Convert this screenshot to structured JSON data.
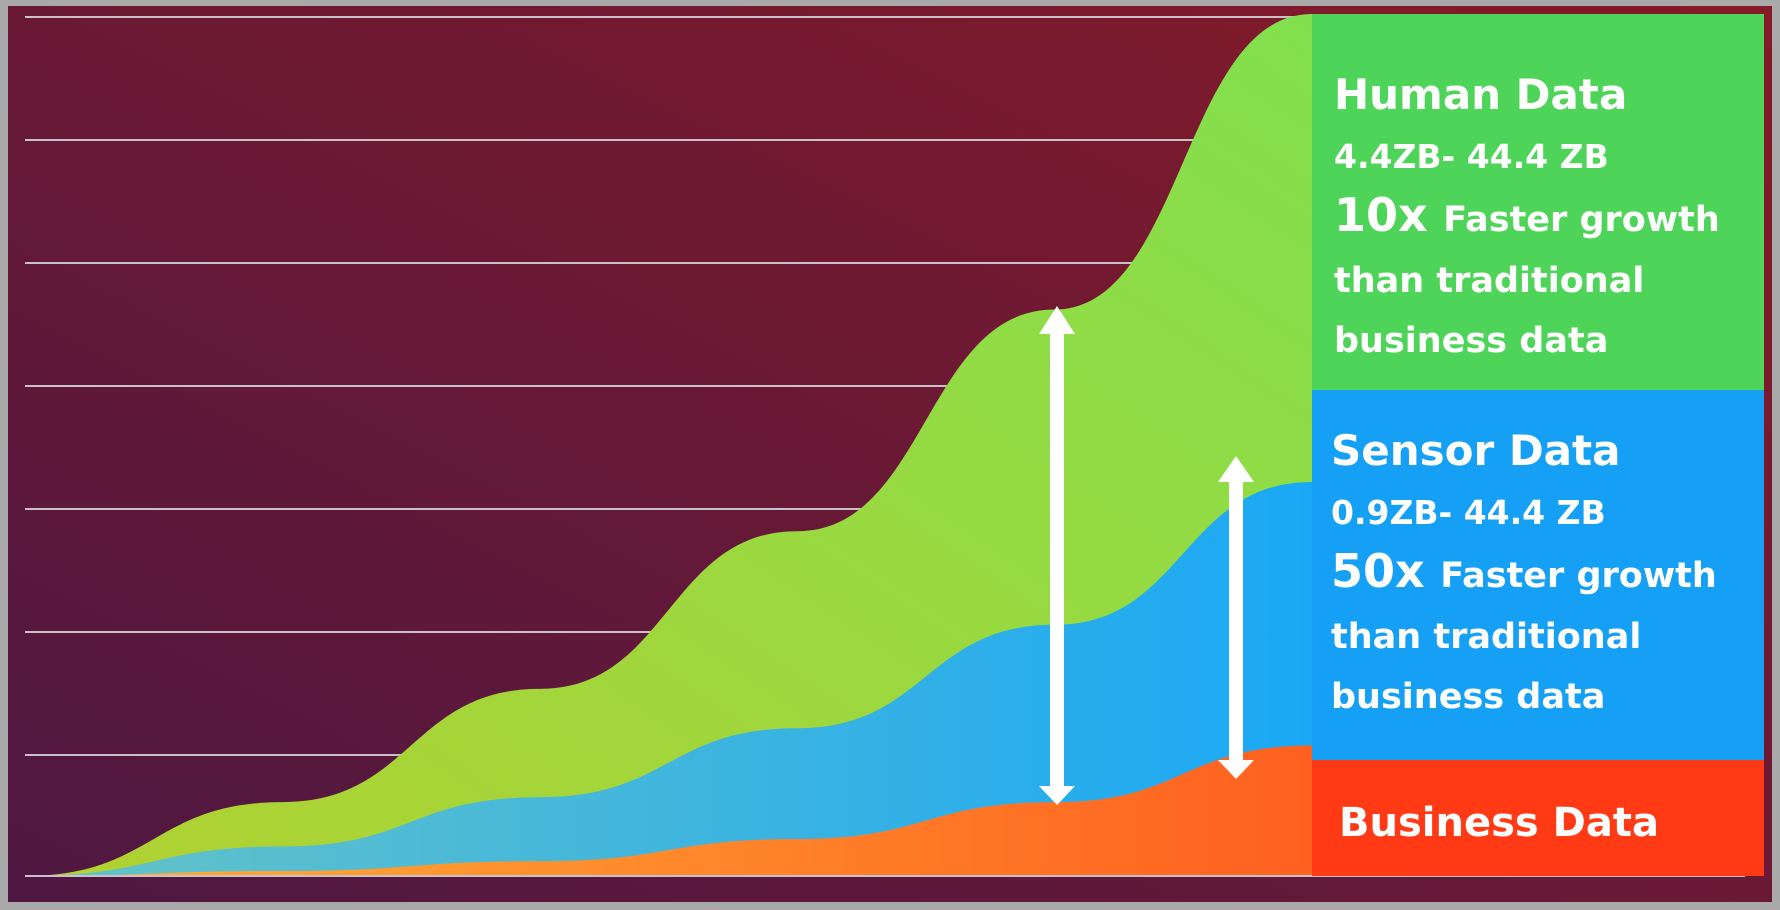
{
  "chart_data": {
    "type": "area",
    "stacked": true,
    "grid": true,
    "x_axis_labels": [],
    "y_axis_labels": [],
    "series_curve_points": {
      "business": [
        [
          0,
          0
        ],
        [
          0.2,
          0.02
        ],
        [
          0.4,
          0.06
        ],
        [
          0.6,
          0.15
        ],
        [
          0.8,
          0.3
        ],
        [
          1,
          0.53
        ]
      ],
      "sensor": [
        [
          0,
          0
        ],
        [
          0.2,
          0.12
        ],
        [
          0.4,
          0.32
        ],
        [
          0.6,
          0.6
        ],
        [
          0.8,
          1.02
        ],
        [
          1,
          1.6
        ]
      ],
      "human": [
        [
          0,
          0
        ],
        [
          0.2,
          0.3
        ],
        [
          0.4,
          0.76
        ],
        [
          0.6,
          1.4
        ],
        [
          0.8,
          2.3
        ],
        [
          1,
          3.5
        ]
      ]
    },
    "gridline_count": 7
  },
  "legend": {
    "human": {
      "title": "Human Data",
      "range": "4.4ZB- 44.4 ZB",
      "multiplier": "10x",
      "line1": "Faster growth",
      "line2": "than traditional",
      "line3": "business data",
      "color": "#4fd45a"
    },
    "sensor": {
      "title": "Sensor Data",
      "range": "0.9ZB- 44.4 ZB",
      "multiplier": "50x",
      "line1": "Faster growth",
      "line2": "than traditional",
      "line3": "business data",
      "color": "#16a0f5"
    },
    "business": {
      "title": "Business Data",
      "color": "#ff3a14"
    }
  },
  "colors": {
    "background_left": "#4e1842",
    "background_right": "#861a28",
    "human_fill_left": "#b1d131",
    "human_fill_right": "#82e04e",
    "sensor_fill_left": "#66c3c6",
    "sensor_fill_right": "#1aa8f5",
    "business_fill_left": "#ffb135",
    "business_fill_right": "#ff6020",
    "arrows": "#ffffff",
    "gridlines": "#c9c0c9"
  }
}
